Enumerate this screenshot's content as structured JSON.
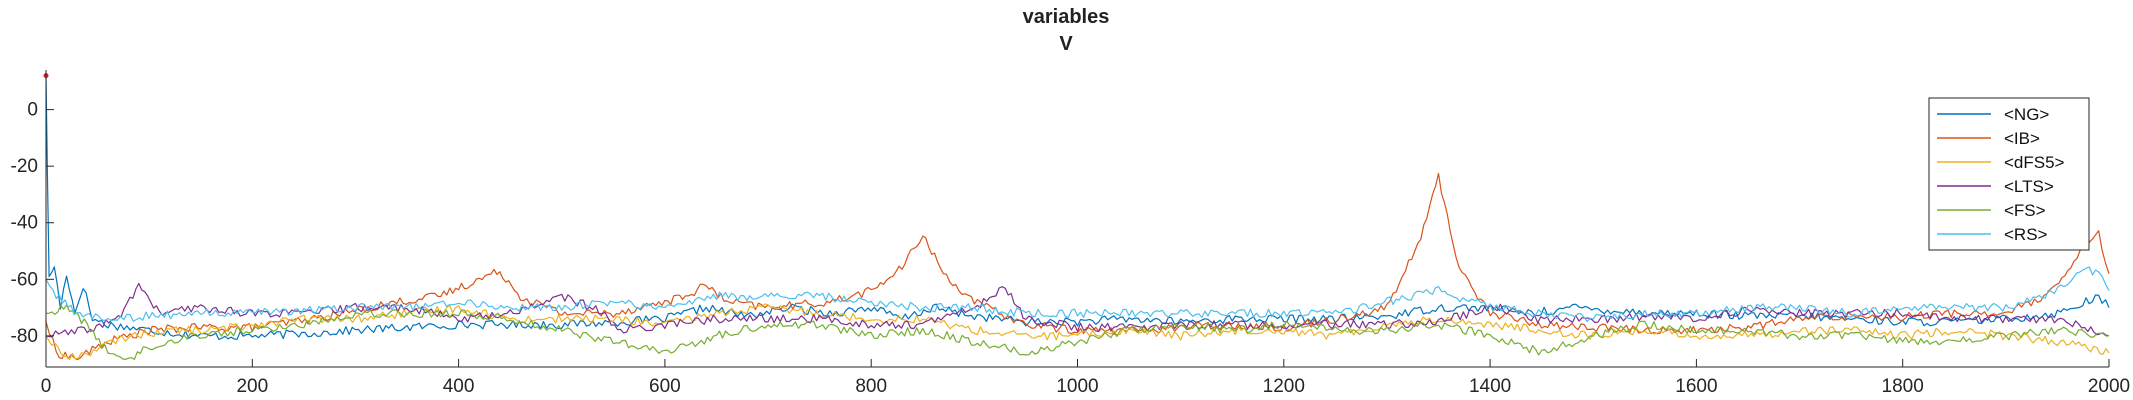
{
  "chart_data": {
    "type": "line",
    "title_lines": [
      "variables",
      "V"
    ],
    "xlabel": "",
    "ylabel": "",
    "xlim": [
      0,
      2000
    ],
    "ylim": [
      -91,
      14
    ],
    "x_ticks": [
      0,
      200,
      400,
      600,
      800,
      1000,
      1200,
      1400,
      1600,
      1800,
      2000
    ],
    "y_ticks": [
      0,
      -20,
      -40,
      -60,
      -80
    ],
    "grid": false,
    "legend_position": "top-right",
    "series": [
      {
        "name": "<NG>",
        "color": "#0072bd",
        "points": [
          [
            0,
            12
          ],
          [
            3,
            -60
          ],
          [
            8,
            -55
          ],
          [
            14,
            -70
          ],
          [
            20,
            -58
          ],
          [
            28,
            -72
          ],
          [
            36,
            -62
          ],
          [
            45,
            -74
          ],
          [
            60,
            -76
          ],
          [
            100,
            -78
          ],
          [
            150,
            -80
          ],
          [
            200,
            -80
          ],
          [
            260,
            -79
          ],
          [
            300,
            -78
          ],
          [
            350,
            -77
          ],
          [
            400,
            -76
          ],
          [
            450,
            -76
          ],
          [
            500,
            -76
          ],
          [
            560,
            -75
          ],
          [
            600,
            -74
          ],
          [
            640,
            -70
          ],
          [
            680,
            -73
          ],
          [
            720,
            -70
          ],
          [
            760,
            -72
          ],
          [
            800,
            -70
          ],
          [
            830,
            -74
          ],
          [
            860,
            -70
          ],
          [
            900,
            -73
          ],
          [
            950,
            -75
          ],
          [
            1000,
            -75
          ],
          [
            1050,
            -74
          ],
          [
            1100,
            -75
          ],
          [
            1150,
            -74
          ],
          [
            1200,
            -74
          ],
          [
            1250,
            -74
          ],
          [
            1300,
            -73
          ],
          [
            1350,
            -70
          ],
          [
            1400,
            -70
          ],
          [
            1440,
            -72
          ],
          [
            1480,
            -70
          ],
          [
            1520,
            -71
          ],
          [
            1560,
            -72
          ],
          [
            1600,
            -72
          ],
          [
            1650,
            -73
          ],
          [
            1700,
            -73
          ],
          [
            1750,
            -74
          ],
          [
            1800,
            -75
          ],
          [
            1850,
            -75
          ],
          [
            1900,
            -74
          ],
          [
            1950,
            -72
          ],
          [
            1990,
            -66
          ],
          [
            2000,
            -70
          ]
        ]
      },
      {
        "name": "<IB>",
        "color": "#d95319",
        "points": [
          [
            0,
            -75
          ],
          [
            10,
            -86
          ],
          [
            30,
            -88
          ],
          [
            60,
            -82
          ],
          [
            100,
            -78
          ],
          [
            150,
            -77
          ],
          [
            200,
            -77
          ],
          [
            260,
            -74
          ],
          [
            300,
            -71
          ],
          [
            340,
            -68
          ],
          [
            380,
            -66
          ],
          [
            400,
            -63
          ],
          [
            420,
            -60
          ],
          [
            440,
            -57
          ],
          [
            460,
            -66
          ],
          [
            500,
            -72
          ],
          [
            550,
            -72
          ],
          [
            600,
            -68
          ],
          [
            620,
            -66
          ],
          [
            640,
            -62
          ],
          [
            660,
            -68
          ],
          [
            700,
            -70
          ],
          [
            760,
            -68
          ],
          [
            800,
            -64
          ],
          [
            830,
            -56
          ],
          [
            850,
            -44
          ],
          [
            870,
            -58
          ],
          [
            900,
            -68
          ],
          [
            950,
            -76
          ],
          [
            1000,
            -78
          ],
          [
            1050,
            -78
          ],
          [
            1100,
            -77
          ],
          [
            1150,
            -76
          ],
          [
            1200,
            -77
          ],
          [
            1250,
            -74
          ],
          [
            1300,
            -70
          ],
          [
            1330,
            -48
          ],
          [
            1350,
            -24
          ],
          [
            1370,
            -56
          ],
          [
            1400,
            -72
          ],
          [
            1450,
            -76
          ],
          [
            1500,
            -77
          ],
          [
            1550,
            -78
          ],
          [
            1600,
            -78
          ],
          [
            1650,
            -77
          ],
          [
            1700,
            -74
          ],
          [
            1750,
            -73
          ],
          [
            1800,
            -73
          ],
          [
            1850,
            -72
          ],
          [
            1900,
            -72
          ],
          [
            1940,
            -66
          ],
          [
            1960,
            -58
          ],
          [
            1975,
            -48
          ],
          [
            1990,
            -44
          ],
          [
            2000,
            -58
          ]
        ]
      },
      {
        "name": "<dFS5>",
        "color": "#edb120",
        "points": [
          [
            0,
            -80
          ],
          [
            20,
            -88
          ],
          [
            40,
            -86
          ],
          [
            80,
            -80
          ],
          [
            120,
            -78
          ],
          [
            160,
            -78
          ],
          [
            200,
            -76
          ],
          [
            250,
            -74
          ],
          [
            300,
            -74
          ],
          [
            350,
            -72
          ],
          [
            400,
            -70
          ],
          [
            450,
            -74
          ],
          [
            500,
            -74
          ],
          [
            550,
            -74
          ],
          [
            600,
            -76
          ],
          [
            650,
            -72
          ],
          [
            700,
            -70
          ],
          [
            750,
            -72
          ],
          [
            800,
            -74
          ],
          [
            850,
            -74
          ],
          [
            900,
            -78
          ],
          [
            950,
            -80
          ],
          [
            1000,
            -80
          ],
          [
            1050,
            -78
          ],
          [
            1100,
            -80
          ],
          [
            1150,
            -78
          ],
          [
            1200,
            -78
          ],
          [
            1250,
            -80
          ],
          [
            1300,
            -76
          ],
          [
            1350,
            -74
          ],
          [
            1400,
            -76
          ],
          [
            1450,
            -78
          ],
          [
            1500,
            -80
          ],
          [
            1550,
            -78
          ],
          [
            1600,
            -80
          ],
          [
            1650,
            -80
          ],
          [
            1700,
            -78
          ],
          [
            1750,
            -78
          ],
          [
            1800,
            -80
          ],
          [
            1850,
            -78
          ],
          [
            1900,
            -80
          ],
          [
            1950,
            -82
          ],
          [
            2000,
            -86
          ]
        ]
      },
      {
        "name": "<LTS>",
        "color": "#7e2f8e",
        "points": [
          [
            0,
            -80
          ],
          [
            40,
            -78
          ],
          [
            70,
            -74
          ],
          [
            90,
            -62
          ],
          [
            110,
            -72
          ],
          [
            150,
            -70
          ],
          [
            200,
            -72
          ],
          [
            250,
            -72
          ],
          [
            300,
            -70
          ],
          [
            350,
            -70
          ],
          [
            400,
            -74
          ],
          [
            450,
            -72
          ],
          [
            500,
            -66
          ],
          [
            530,
            -70
          ],
          [
            560,
            -78
          ],
          [
            600,
            -76
          ],
          [
            650,
            -74
          ],
          [
            700,
            -74
          ],
          [
            750,
            -74
          ],
          [
            800,
            -76
          ],
          [
            850,
            -76
          ],
          [
            900,
            -70
          ],
          [
            930,
            -63
          ],
          [
            950,
            -74
          ],
          [
            1000,
            -77
          ],
          [
            1050,
            -77
          ],
          [
            1100,
            -76
          ],
          [
            1150,
            -76
          ],
          [
            1200,
            -76
          ],
          [
            1250,
            -76
          ],
          [
            1300,
            -76
          ],
          [
            1350,
            -75
          ],
          [
            1380,
            -72
          ],
          [
            1410,
            -70
          ],
          [
            1440,
            -74
          ],
          [
            1480,
            -74
          ],
          [
            1520,
            -74
          ],
          [
            1560,
            -73
          ],
          [
            1600,
            -74
          ],
          [
            1650,
            -71
          ],
          [
            1700,
            -72
          ],
          [
            1750,
            -72
          ],
          [
            1800,
            -72
          ],
          [
            1850,
            -74
          ],
          [
            1900,
            -74
          ],
          [
            1950,
            -74
          ],
          [
            2000,
            -80
          ]
        ]
      },
      {
        "name": "<FS>",
        "color": "#77ac30",
        "points": [
          [
            0,
            -72
          ],
          [
            20,
            -70
          ],
          [
            40,
            -76
          ],
          [
            60,
            -86
          ],
          [
            80,
            -88
          ],
          [
            100,
            -84
          ],
          [
            140,
            -80
          ],
          [
            200,
            -78
          ],
          [
            250,
            -76
          ],
          [
            300,
            -72
          ],
          [
            350,
            -72
          ],
          [
            400,
            -72
          ],
          [
            450,
            -74
          ],
          [
            500,
            -78
          ],
          [
            550,
            -82
          ],
          [
            600,
            -86
          ],
          [
            650,
            -80
          ],
          [
            700,
            -76
          ],
          [
            750,
            -76
          ],
          [
            800,
            -80
          ],
          [
            850,
            -78
          ],
          [
            900,
            -82
          ],
          [
            950,
            -86
          ],
          [
            1000,
            -82
          ],
          [
            1050,
            -78
          ],
          [
            1100,
            -76
          ],
          [
            1150,
            -78
          ],
          [
            1200,
            -76
          ],
          [
            1250,
            -78
          ],
          [
            1300,
            -78
          ],
          [
            1350,
            -76
          ],
          [
            1400,
            -80
          ],
          [
            1450,
            -86
          ],
          [
            1500,
            -80
          ],
          [
            1550,
            -76
          ],
          [
            1600,
            -78
          ],
          [
            1650,
            -78
          ],
          [
            1700,
            -80
          ],
          [
            1750,
            -80
          ],
          [
            1800,
            -82
          ],
          [
            1850,
            -82
          ],
          [
            1900,
            -80
          ],
          [
            1950,
            -78
          ],
          [
            2000,
            -80
          ]
        ]
      },
      {
        "name": "<RS>",
        "color": "#4dbeee",
        "points": [
          [
            0,
            -60
          ],
          [
            10,
            -66
          ],
          [
            30,
            -72
          ],
          [
            60,
            -74
          ],
          [
            100,
            -73
          ],
          [
            150,
            -72
          ],
          [
            200,
            -72
          ],
          [
            250,
            -71
          ],
          [
            300,
            -70
          ],
          [
            350,
            -70
          ],
          [
            400,
            -68
          ],
          [
            450,
            -70
          ],
          [
            500,
            -70
          ],
          [
            550,
            -68
          ],
          [
            600,
            -70
          ],
          [
            650,
            -66
          ],
          [
            700,
            -66
          ],
          [
            750,
            -66
          ],
          [
            800,
            -68
          ],
          [
            850,
            -70
          ],
          [
            900,
            -70
          ],
          [
            950,
            -72
          ],
          [
            1000,
            -72
          ],
          [
            1050,
            -72
          ],
          [
            1100,
            -72
          ],
          [
            1150,
            -72
          ],
          [
            1200,
            -72
          ],
          [
            1250,
            -72
          ],
          [
            1300,
            -68
          ],
          [
            1350,
            -64
          ],
          [
            1400,
            -70
          ],
          [
            1450,
            -72
          ],
          [
            1500,
            -74
          ],
          [
            1550,
            -72
          ],
          [
            1600,
            -72
          ],
          [
            1650,
            -70
          ],
          [
            1700,
            -70
          ],
          [
            1750,
            -72
          ],
          [
            1800,
            -70
          ],
          [
            1850,
            -70
          ],
          [
            1900,
            -70
          ],
          [
            1950,
            -64
          ],
          [
            1975,
            -56
          ],
          [
            1990,
            -58
          ],
          [
            2000,
            -64
          ]
        ]
      }
    ],
    "annotations": [
      {
        "type": "marker",
        "x": 0,
        "y": 12,
        "color": "#e0201e"
      }
    ]
  }
}
